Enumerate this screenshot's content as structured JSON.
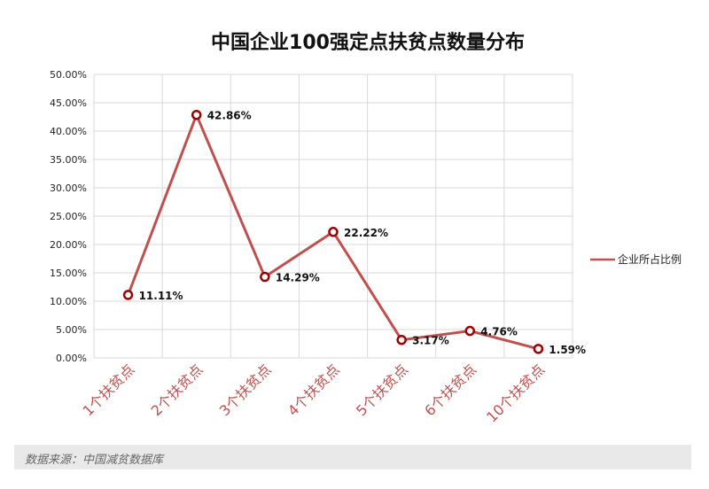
{
  "chart_data": {
    "type": "line",
    "title": "中国企业100强定点扶贫点数量分布",
    "categories": [
      "1个扶贫点",
      "2个扶贫点",
      "3个扶贫点",
      "4个扶贫点",
      "5个扶贫点",
      "6个扶贫点",
      "10个扶贫点"
    ],
    "series": [
      {
        "name": "企业所占比例",
        "values": [
          11.11,
          42.86,
          14.29,
          22.22,
          3.17,
          4.76,
          1.59
        ],
        "labels": [
          "11.11%",
          "42.86%",
          "14.29%",
          "22.22%",
          "3.17%",
          "4.76%",
          "1.59%"
        ],
        "color": "#c0504d"
      }
    ],
    "y_ticks": [
      "0.00%",
      "5.00%",
      "10.00%",
      "15.00%",
      "20.00%",
      "25.00%",
      "30.00%",
      "35.00%",
      "40.00%",
      "45.00%",
      "50.00%"
    ],
    "ylim": [
      0,
      50
    ],
    "xlabel": "",
    "ylabel": "",
    "grid": true,
    "legend_position": "right"
  },
  "source": "数据来源：中国减贫数据库",
  "colors": {
    "line": "#c0504d",
    "marker_border": "#a00000",
    "category_label": "#c0504d",
    "grid": "#d9d9d9"
  }
}
